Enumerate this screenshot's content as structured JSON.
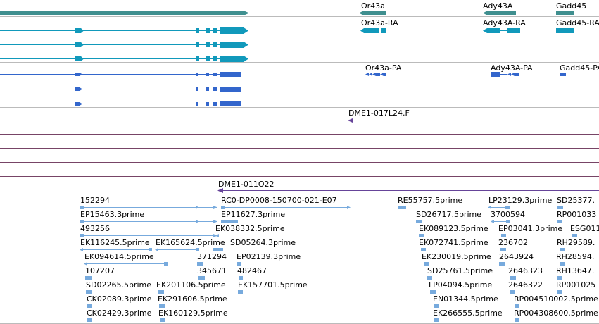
{
  "colors": {
    "separator": "#bbbbbb",
    "gene": "#3f8f8f",
    "transcript_ra": "#1199bb",
    "transcript_pa": "#3366cc",
    "probe": "#664499",
    "track_line": "#774466",
    "est": "#77aadd"
  },
  "tracks": {
    "genes": {
      "labels": [
        "Or43a",
        "Ady43A",
        "Gadd45"
      ]
    },
    "transcripts_ra": {
      "labels": [
        "Or43a-RA",
        "Ady43A-RA",
        "Gadd45-RA"
      ]
    },
    "transcripts_pa": {
      "labels": [
        "Or43a-PA",
        "Ady43A-PA",
        "Gadd45-PA"
      ]
    },
    "probes": {
      "label_1": "DME1-017L24.F",
      "label_2": "DME1-011O22"
    },
    "est": {
      "labels": [
        "152294",
        "RC0-DP0008-150700-021-E07",
        "RE55757.5prime",
        "LP23129.3prime",
        "SD25377.",
        "EP15463.3prime",
        "EP11627.3prime",
        "SD26717.5prime",
        "3700594",
        "RP001033",
        "493256",
        "EK038332.5prime",
        "EK089123.5prime",
        "EP03041.3prime",
        "ESG011",
        "EK116245.5prime",
        "EK165624.5prime",
        "SD05264.3prime",
        "EK072741.5prime",
        "236702",
        "RH29589.",
        "EK094614.5prime",
        "371294",
        "EP02139.3prime",
        "EK230019.5prime",
        "2643924",
        "RH28594.",
        "107207",
        "345671",
        "482467",
        "SD25761.5prime",
        "2646323",
        "RH13647.",
        "SD02265.5prime",
        "EK201106.5prime",
        "EK157701.5prime",
        "LP04094.5prime",
        "2646322",
        "RP001025",
        "CK02089.3prime",
        "EK291606.5prime",
        "EN01344.5prime",
        "RP004510002.5prime",
        "CK02429.3prime",
        "EK160129.5prime",
        "EK266555.5prime",
        "RP004308600.5prime"
      ]
    }
  }
}
